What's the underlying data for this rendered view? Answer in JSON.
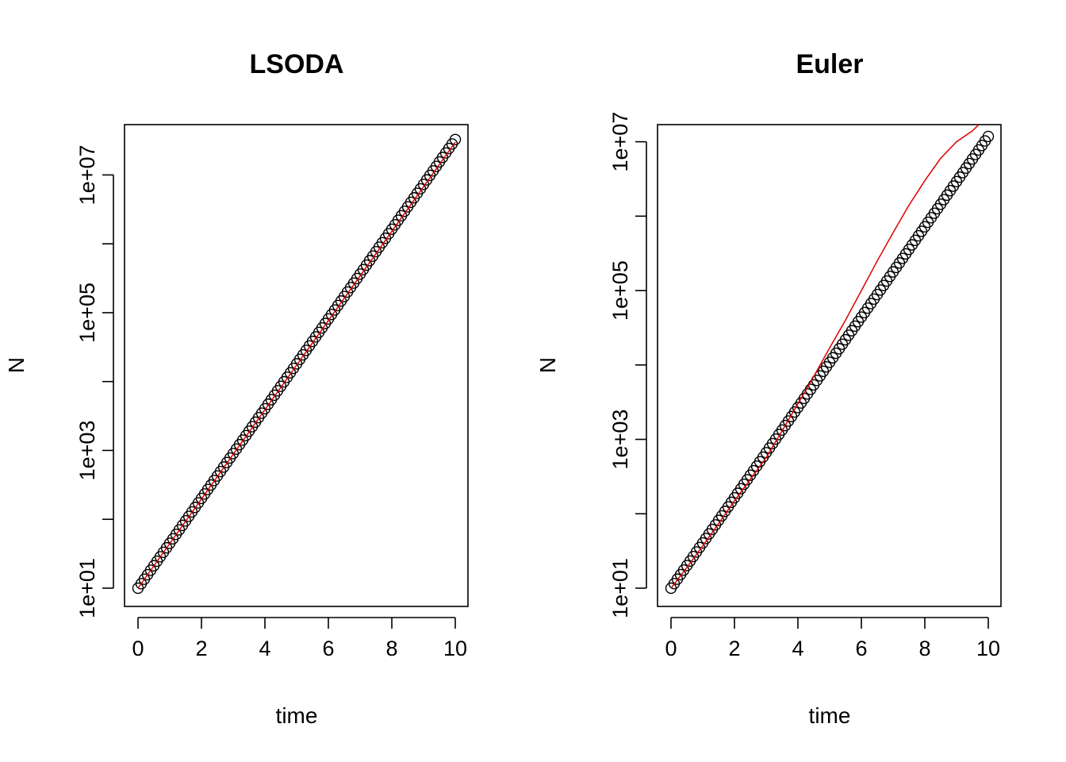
{
  "chart_data": [
    {
      "type": "scatter",
      "title": "LSODA",
      "xlabel": "time",
      "ylabel": "N",
      "log_y": true,
      "xlim": [
        0,
        10
      ],
      "ylim": [
        10,
        30000000
      ],
      "x_ticks": [
        0,
        2,
        4,
        6,
        8,
        10
      ],
      "x_tick_labels": [
        "0",
        "2",
        "4",
        "6",
        "8",
        "10"
      ],
      "y_ticks": [
        10,
        100,
        1000,
        10000,
        100000,
        1000000,
        10000000
      ],
      "y_tick_labels": [
        "1e+01",
        "",
        "1e+03",
        "",
        "1e+05",
        "",
        "1e+07"
      ],
      "grid": false,
      "series": [
        {
          "kind": "points",
          "marker": "open-circle",
          "color": "#000000",
          "model": "exponential",
          "x_start": 0,
          "x_end": 10,
          "x_step": 0.1,
          "y0": 10,
          "growth_rate": 1.5
        },
        {
          "kind": "line",
          "color": "#dd0000",
          "x": [
            0,
            10
          ],
          "y": [
            10,
            30000000
          ]
        }
      ]
    },
    {
      "type": "scatter",
      "title": "Euler",
      "xlabel": "time",
      "ylabel": "N",
      "log_y": true,
      "xlim": [
        0,
        10
      ],
      "ylim": [
        10,
        17000000
      ],
      "x_ticks": [
        0,
        2,
        4,
        6,
        8,
        10
      ],
      "x_tick_labels": [
        "0",
        "2",
        "4",
        "6",
        "8",
        "10"
      ],
      "y_ticks": [
        10,
        100,
        1000,
        10000,
        100000,
        1000000,
        10000000
      ],
      "y_tick_labels": [
        "1e+01",
        "",
        "1e+03",
        "",
        "1e+05",
        "",
        "1e+07"
      ],
      "grid": false,
      "series": [
        {
          "kind": "points",
          "marker": "open-circle",
          "color": "#000000",
          "model": "exponential",
          "x_start": 0,
          "x_end": 10,
          "x_step": 0.1,
          "y0": 10,
          "growth_rate": 1.398
        },
        {
          "kind": "line",
          "color": "#dd0000",
          "x": [
            0,
            0.5,
            1,
            1.5,
            2,
            2.5,
            3,
            3.5,
            4,
            4.5,
            5,
            5.5,
            6,
            6.5,
            7,
            7.5,
            8,
            8.5,
            9,
            9.5,
            9.7
          ],
          "y": [
            10,
            19,
            37,
            74,
            150,
            290,
            570,
            1300,
            3000,
            7000,
            17000,
            40000,
            100000,
            250000,
            600000,
            1400000,
            3000000,
            6000000,
            10000000,
            14000000,
            17000000
          ]
        }
      ]
    }
  ]
}
